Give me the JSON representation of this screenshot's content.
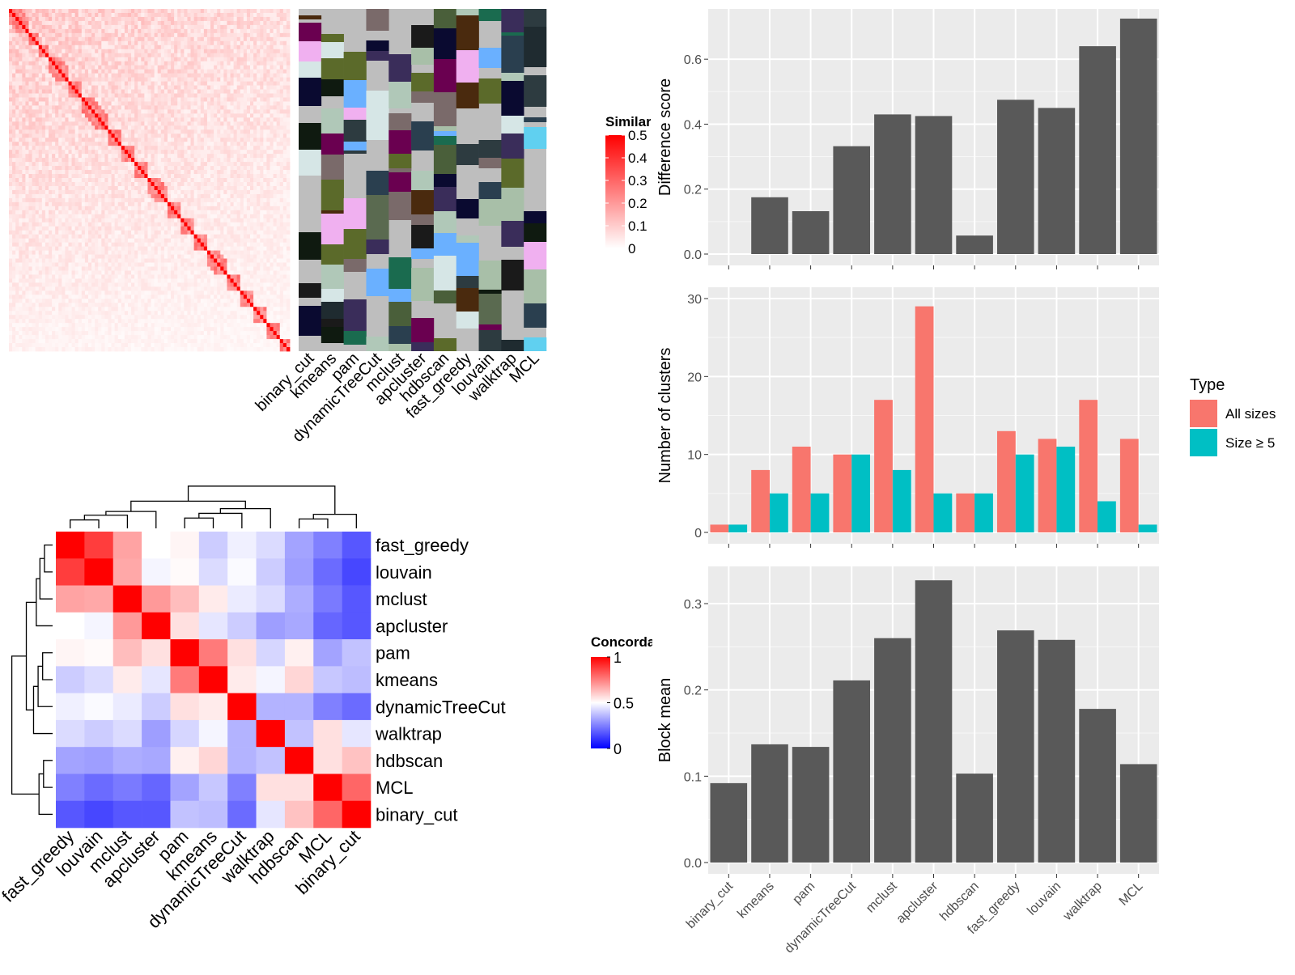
{
  "chart_data": [
    {
      "type": "heatmap",
      "panel": "similarity",
      "legend_title": "Similarity",
      "legend_ticks": [
        "0.5",
        "0.4",
        "0.3",
        "0.2",
        "0.1",
        "0"
      ],
      "value_range": [
        0,
        0.5
      ],
      "colors": {
        "low": "#ffffff",
        "high": "#ff0000"
      },
      "annotation_columns": [
        "binary_cut",
        "kmeans",
        "pam",
        "dynamicTreeCut",
        "mclust",
        "apcluster",
        "hdbscan",
        "fast_greedy",
        "louvain",
        "walktrap",
        "MCL"
      ]
    },
    {
      "type": "heatmap",
      "panel": "concordance",
      "legend_title": "Concordance",
      "legend_ticks": [
        "1",
        "0.5",
        "0"
      ],
      "value_range": [
        0,
        1
      ],
      "colors": {
        "low": "#0000ff",
        "mid": "#ffffff",
        "high": "#ff0000"
      },
      "rows": [
        "fast_greedy",
        "louvain",
        "mclust",
        "apcluster",
        "pam",
        "kmeans",
        "dynamicTreeCut",
        "walktrap",
        "hdbscan",
        "MCL",
        "binary_cut"
      ],
      "columns": [
        "fast_greedy",
        "louvain",
        "mclust",
        "apcluster",
        "pam",
        "kmeans",
        "dynamicTreeCut",
        "walktrap",
        "hdbscan",
        "MCL",
        "binary_cut"
      ],
      "values": [
        [
          1.0,
          0.88,
          0.68,
          0.5,
          0.52,
          0.4,
          0.47,
          0.43,
          0.32,
          0.25,
          0.17
        ],
        [
          0.88,
          1.0,
          0.67,
          0.48,
          0.51,
          0.43,
          0.49,
          0.4,
          0.31,
          0.21,
          0.14
        ],
        [
          0.68,
          0.67,
          1.0,
          0.7,
          0.63,
          0.54,
          0.46,
          0.43,
          0.34,
          0.24,
          0.17
        ],
        [
          0.5,
          0.48,
          0.7,
          1.0,
          0.56,
          0.45,
          0.4,
          0.31,
          0.33,
          0.2,
          0.17
        ],
        [
          0.52,
          0.51,
          0.63,
          0.56,
          1.0,
          0.76,
          0.56,
          0.42,
          0.53,
          0.32,
          0.38
        ],
        [
          0.4,
          0.43,
          0.54,
          0.45,
          0.76,
          1.0,
          0.54,
          0.48,
          0.58,
          0.39,
          0.37
        ],
        [
          0.47,
          0.49,
          0.46,
          0.4,
          0.56,
          0.54,
          1.0,
          0.35,
          0.35,
          0.25,
          0.21
        ],
        [
          0.43,
          0.4,
          0.43,
          0.31,
          0.42,
          0.48,
          0.35,
          1.0,
          0.38,
          0.56,
          0.45
        ],
        [
          0.32,
          0.31,
          0.34,
          0.33,
          0.53,
          0.58,
          0.35,
          0.38,
          1.0,
          0.56,
          0.62
        ],
        [
          0.25,
          0.21,
          0.24,
          0.2,
          0.32,
          0.39,
          0.25,
          0.56,
          0.56,
          1.0,
          0.8
        ],
        [
          0.17,
          0.14,
          0.17,
          0.17,
          0.38,
          0.37,
          0.21,
          0.45,
          0.62,
          0.8,
          1.0
        ]
      ]
    },
    {
      "type": "bar",
      "panel": "difference_score",
      "ylabel": "Difference score",
      "ylim": [
        0,
        0.72
      ],
      "yticks": [
        0.0,
        0.2,
        0.4,
        0.6
      ],
      "yticklabels": [
        "0.0",
        "0.2",
        "0.4",
        "0.6"
      ],
      "categories": [
        "binary_cut",
        "kmeans",
        "pam",
        "dynamicTreeCut",
        "mclust",
        "apcluster",
        "hdbscan",
        "fast_greedy",
        "louvain",
        "walktrap",
        "MCL"
      ],
      "values": [
        0.0,
        0.175,
        0.132,
        0.332,
        0.43,
        0.425,
        0.057,
        0.475,
        0.45,
        0.64,
        0.725
      ],
      "bar_color": "#595959"
    },
    {
      "type": "bar",
      "panel": "number_of_clusters",
      "ylabel": "Number of clusters",
      "ylim": [
        0,
        30
      ],
      "yticks": [
        0,
        10,
        20,
        30
      ],
      "yticklabels": [
        "0",
        "10",
        "20",
        "30"
      ],
      "categories": [
        "binary_cut",
        "kmeans",
        "pam",
        "dynamicTreeCut",
        "mclust",
        "apcluster",
        "hdbscan",
        "fast_greedy",
        "louvain",
        "walktrap",
        "MCL"
      ],
      "legend_title": "Type",
      "series": [
        {
          "name": "All sizes",
          "color": "#f8766d",
          "values": [
            1,
            8,
            11,
            10,
            17,
            29,
            5,
            13,
            12,
            17,
            12
          ]
        },
        {
          "name": "Size ≥ 5",
          "color": "#00bfc4",
          "values": [
            1,
            5,
            5,
            10,
            8,
            5,
            5,
            10,
            11,
            4,
            1
          ]
        }
      ]
    },
    {
      "type": "bar",
      "panel": "block_mean",
      "ylabel": "Block mean",
      "ylim": [
        0,
        0.33
      ],
      "yticks": [
        0.0,
        0.1,
        0.2,
        0.3
      ],
      "yticklabels": [
        "0.0",
        "0.1",
        "0.2",
        "0.3"
      ],
      "categories": [
        "binary_cut",
        "kmeans",
        "pam",
        "dynamicTreeCut",
        "mclust",
        "apcluster",
        "hdbscan",
        "fast_greedy",
        "louvain",
        "walktrap",
        "MCL"
      ],
      "values": [
        0.092,
        0.137,
        0.134,
        0.211,
        0.26,
        0.327,
        0.103,
        0.269,
        0.258,
        0.178,
        0.114
      ],
      "bar_color": "#595959"
    }
  ]
}
